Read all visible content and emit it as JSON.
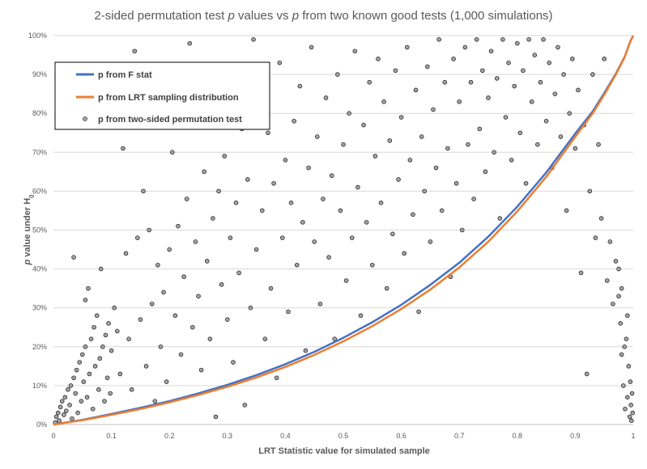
{
  "chart_data": {
    "type": "scatter",
    "title": {
      "part1": "2-sided permutation test ",
      "p1": "p",
      "part2": " values vs ",
      "p2": "p",
      "part3": " from two known good tests (1,000 simulations)"
    },
    "xlabel": "LRT Statistic value for simulated sample",
    "ylabel": {
      "p": "p",
      "rest": " value under H",
      "sub": "0"
    },
    "xlim": [
      0,
      1
    ],
    "ylim": [
      0,
      1
    ],
    "x_ticks": [
      "0",
      "0.1",
      "0.2",
      "0.3",
      "0.4",
      "0.5",
      "0.6",
      "0.7",
      "0.8",
      "0.9",
      "1"
    ],
    "y_ticks": [
      "0%",
      "10%",
      "20%",
      "30%",
      "40%",
      "50%",
      "60%",
      "70%",
      "80%",
      "90%",
      "100%"
    ],
    "grid": "horizontal",
    "legend_position": "top-left",
    "series": [
      {
        "name": "p from F stat",
        "kind": "line",
        "color": "#4472C4",
        "points": [
          [
            0,
            0
          ],
          [
            0.05,
            0.012
          ],
          [
            0.1,
            0.027
          ],
          [
            0.15,
            0.043
          ],
          [
            0.2,
            0.06
          ],
          [
            0.25,
            0.08
          ],
          [
            0.3,
            0.102
          ],
          [
            0.35,
            0.127
          ],
          [
            0.4,
            0.155
          ],
          [
            0.45,
            0.187
          ],
          [
            0.5,
            0.223
          ],
          [
            0.55,
            0.263
          ],
          [
            0.6,
            0.308
          ],
          [
            0.65,
            0.359
          ],
          [
            0.7,
            0.416
          ],
          [
            0.75,
            0.483
          ],
          [
            0.8,
            0.56
          ],
          [
            0.85,
            0.648
          ],
          [
            0.9,
            0.748
          ],
          [
            0.93,
            0.805
          ],
          [
            0.95,
            0.852
          ],
          [
            0.97,
            0.902
          ],
          [
            0.985,
            0.945
          ],
          [
            0.995,
            0.985
          ],
          [
            1,
            1
          ]
        ]
      },
      {
        "name": "p from LRT sampling distribution",
        "kind": "line",
        "color": "#ED7D31",
        "points": [
          [
            0,
            0
          ],
          [
            0.05,
            0.011
          ],
          [
            0.1,
            0.025
          ],
          [
            0.15,
            0.04
          ],
          [
            0.2,
            0.057
          ],
          [
            0.25,
            0.076
          ],
          [
            0.3,
            0.097
          ],
          [
            0.35,
            0.121
          ],
          [
            0.4,
            0.148
          ],
          [
            0.45,
            0.179
          ],
          [
            0.5,
            0.214
          ],
          [
            0.55,
            0.253
          ],
          [
            0.6,
            0.297
          ],
          [
            0.65,
            0.347
          ],
          [
            0.7,
            0.404
          ],
          [
            0.75,
            0.47
          ],
          [
            0.8,
            0.548
          ],
          [
            0.85,
            0.637
          ],
          [
            0.9,
            0.74
          ],
          [
            0.93,
            0.8
          ],
          [
            0.95,
            0.848
          ],
          [
            0.97,
            0.9
          ],
          [
            0.985,
            0.944
          ],
          [
            0.995,
            0.985
          ],
          [
            1,
            1
          ]
        ]
      },
      {
        "name": "p from two-sided permutation test",
        "kind": "scatter",
        "color": "#A5A5A5",
        "points": [
          [
            0.003,
            0.005
          ],
          [
            0.005,
            0.02
          ],
          [
            0.008,
            0.03
          ],
          [
            0.01,
            0.01
          ],
          [
            0.012,
            0.045
          ],
          [
            0.015,
            0.06
          ],
          [
            0.018,
            0.025
          ],
          [
            0.02,
            0.07
          ],
          [
            0.022,
            0.035
          ],
          [
            0.025,
            0.09
          ],
          [
            0.028,
            0.05
          ],
          [
            0.03,
            0.1
          ],
          [
            0.032,
            0.015
          ],
          [
            0.035,
            0.12
          ],
          [
            0.038,
            0.08
          ],
          [
            0.04,
            0.14
          ],
          [
            0.042,
            0.03
          ],
          [
            0.045,
            0.16
          ],
          [
            0.048,
            0.06
          ],
          [
            0.05,
            0.18
          ],
          [
            0.052,
            0.11
          ],
          [
            0.055,
            0.2
          ],
          [
            0.058,
            0.07
          ],
          [
            0.06,
            0.35
          ],
          [
            0.062,
            0.13
          ],
          [
            0.065,
            0.22
          ],
          [
            0.068,
            0.04
          ],
          [
            0.07,
            0.25
          ],
          [
            0.072,
            0.15
          ],
          [
            0.075,
            0.28
          ],
          [
            0.078,
            0.09
          ],
          [
            0.08,
            0.17
          ],
          [
            0.082,
            0.4
          ],
          [
            0.085,
            0.2
          ],
          [
            0.088,
            0.06
          ],
          [
            0.09,
            0.23
          ],
          [
            0.093,
            0.12
          ],
          [
            0.095,
            0.26
          ],
          [
            0.098,
            0.08
          ],
          [
            0.1,
            0.19
          ],
          [
            0.035,
            0.43
          ],
          [
            0.055,
            0.32
          ],
          [
            0.105,
            0.3
          ],
          [
            0.11,
            0.24
          ],
          [
            0.115,
            0.13
          ],
          [
            0.12,
            0.71
          ],
          [
            0.125,
            0.44
          ],
          [
            0.13,
            0.22
          ],
          [
            0.135,
            0.09
          ],
          [
            0.14,
            0.96
          ],
          [
            0.145,
            0.48
          ],
          [
            0.15,
            0.27
          ],
          [
            0.155,
            0.6
          ],
          [
            0.16,
            0.15
          ],
          [
            0.165,
            0.5
          ],
          [
            0.17,
            0.31
          ],
          [
            0.175,
            0.06
          ],
          [
            0.18,
            0.41
          ],
          [
            0.185,
            0.2
          ],
          [
            0.19,
            0.34
          ],
          [
            0.195,
            0.11
          ],
          [
            0.2,
            0.45
          ],
          [
            0.205,
            0.7
          ],
          [
            0.21,
            0.28
          ],
          [
            0.215,
            0.51
          ],
          [
            0.22,
            0.18
          ],
          [
            0.225,
            0.38
          ],
          [
            0.23,
            0.58
          ],
          [
            0.235,
            0.98
          ],
          [
            0.24,
            0.25
          ],
          [
            0.245,
            0.47
          ],
          [
            0.25,
            0.33
          ],
          [
            0.255,
            0.14
          ],
          [
            0.26,
            0.65
          ],
          [
            0.265,
            0.42
          ],
          [
            0.27,
            0.22
          ],
          [
            0.275,
            0.53
          ],
          [
            0.28,
            0.02
          ],
          [
            0.285,
            0.6
          ],
          [
            0.29,
            0.36
          ],
          [
            0.295,
            0.69
          ],
          [
            0.3,
            0.27
          ],
          [
            0.305,
            0.48
          ],
          [
            0.31,
            0.16
          ],
          [
            0.315,
            0.57
          ],
          [
            0.32,
            0.39
          ],
          [
            0.325,
            0.76
          ],
          [
            0.33,
            0.05
          ],
          [
            0.335,
            0.63
          ],
          [
            0.34,
            0.3
          ],
          [
            0.345,
            0.99
          ],
          [
            0.35,
            0.45
          ],
          [
            0.355,
            0.86
          ],
          [
            0.36,
            0.55
          ],
          [
            0.365,
            0.22
          ],
          [
            0.37,
            0.75
          ],
          [
            0.375,
            0.35
          ],
          [
            0.38,
            0.62
          ],
          [
            0.385,
            0.12
          ],
          [
            0.39,
            0.93
          ],
          [
            0.395,
            0.48
          ],
          [
            0.4,
            0.68
          ],
          [
            0.405,
            0.29
          ],
          [
            0.41,
            0.57
          ],
          [
            0.415,
            0.78
          ],
          [
            0.42,
            0.41
          ],
          [
            0.425,
            0.87
          ],
          [
            0.43,
            0.52
          ],
          [
            0.435,
            0.19
          ],
          [
            0.44,
            0.66
          ],
          [
            0.445,
            0.97
          ],
          [
            0.45,
            0.47
          ],
          [
            0.455,
            0.74
          ],
          [
            0.46,
            0.31
          ],
          [
            0.465,
            0.58
          ],
          [
            0.47,
            0.84
          ],
          [
            0.475,
            0.43
          ],
          [
            0.48,
            0.64
          ],
          [
            0.485,
            0.22
          ],
          [
            0.49,
            0.9
          ],
          [
            0.495,
            0.55
          ],
          [
            0.5,
            0.72
          ],
          [
            0.505,
            0.37
          ],
          [
            0.51,
            0.8
          ],
          [
            0.515,
            0.48
          ],
          [
            0.52,
            0.96
          ],
          [
            0.525,
            0.61
          ],
          [
            0.53,
            0.28
          ],
          [
            0.535,
            0.77
          ],
          [
            0.54,
            0.52
          ],
          [
            0.545,
            0.88
          ],
          [
            0.55,
            0.41
          ],
          [
            0.555,
            0.69
          ],
          [
            0.56,
            0.94
          ],
          [
            0.565,
            0.57
          ],
          [
            0.57,
            0.83
          ],
          [
            0.575,
            0.35
          ],
          [
            0.58,
            0.73
          ],
          [
            0.585,
            0.49
          ],
          [
            0.59,
            0.91
          ],
          [
            0.595,
            0.63
          ],
          [
            0.6,
            0.79
          ],
          [
            0.605,
            0.44
          ],
          [
            0.61,
            0.97
          ],
          [
            0.615,
            0.68
          ],
          [
            0.62,
            0.54
          ],
          [
            0.625,
            0.86
          ],
          [
            0.63,
            0.29
          ],
          [
            0.635,
            0.74
          ],
          [
            0.64,
            0.6
          ],
          [
            0.645,
            0.92
          ],
          [
            0.65,
            0.47
          ],
          [
            0.655,
            0.81
          ],
          [
            0.66,
            0.66
          ],
          [
            0.665,
            0.99
          ],
          [
            0.67,
            0.55
          ],
          [
            0.675,
            0.88
          ],
          [
            0.68,
            0.71
          ],
          [
            0.685,
            0.38
          ],
          [
            0.69,
            0.94
          ],
          [
            0.695,
            0.62
          ],
          [
            0.7,
            0.83
          ],
          [
            0.705,
            0.5
          ],
          [
            0.71,
            0.97
          ],
          [
            0.715,
            0.72
          ],
          [
            0.72,
            0.88
          ],
          [
            0.725,
            0.58
          ],
          [
            0.73,
            0.99
          ],
          [
            0.735,
            0.76
          ],
          [
            0.74,
            0.91
          ],
          [
            0.745,
            0.65
          ],
          [
            0.75,
            0.84
          ],
          [
            0.755,
            0.96
          ],
          [
            0.76,
            0.7
          ],
          [
            0.765,
            0.89
          ],
          [
            0.77,
            0.53
          ],
          [
            0.775,
            0.99
          ],
          [
            0.78,
            0.79
          ],
          [
            0.785,
            0.93
          ],
          [
            0.79,
            0.68
          ],
          [
            0.795,
            0.87
          ],
          [
            0.8,
            0.98
          ],
          [
            0.805,
            0.75
          ],
          [
            0.81,
            0.91
          ],
          [
            0.815,
            0.62
          ],
          [
            0.82,
            0.99
          ],
          [
            0.825,
            0.83
          ],
          [
            0.83,
            0.95
          ],
          [
            0.835,
            0.72
          ],
          [
            0.84,
            0.88
          ],
          [
            0.845,
            0.99
          ],
          [
            0.85,
            0.78
          ],
          [
            0.855,
            0.93
          ],
          [
            0.86,
            0.66
          ],
          [
            0.865,
            0.85
          ],
          [
            0.87,
            0.97
          ],
          [
            0.875,
            0.74
          ],
          [
            0.88,
            0.9
          ],
          [
            0.885,
            0.55
          ],
          [
            0.89,
            0.8
          ],
          [
            0.895,
            0.94
          ],
          [
            0.9,
            0.71
          ],
          [
            0.905,
            0.86
          ],
          [
            0.91,
            0.39
          ],
          [
            0.915,
            0.77
          ],
          [
            0.92,
            0.13
          ],
          [
            0.925,
            0.6
          ],
          [
            0.93,
            0.9
          ],
          [
            0.935,
            0.48
          ],
          [
            0.94,
            0.72
          ],
          [
            0.945,
            0.53
          ],
          [
            0.95,
            0.94
          ],
          [
            0.955,
            0.37
          ],
          [
            0.96,
            0.47
          ],
          [
            0.965,
            0.31
          ],
          [
            0.97,
            0.42
          ],
          [
            0.975,
            0.33
          ],
          [
            0.978,
            0.26
          ],
          [
            0.98,
            0.18
          ],
          [
            0.983,
            0.1
          ],
          [
            0.986,
            0.04
          ],
          [
            0.988,
            0.22
          ],
          [
            0.99,
            0.07
          ],
          [
            0.992,
            0.15
          ],
          [
            0.994,
            0.02
          ],
          [
            0.995,
            0.11
          ],
          [
            0.996,
            0.05
          ],
          [
            0.997,
            0.01
          ],
          [
            0.998,
            0.08
          ],
          [
            0.999,
            0.03
          ],
          [
            0.98,
            0.35
          ],
          [
            0.975,
            0.4
          ],
          [
            0.99,
            0.28
          ],
          [
            0.985,
            0.2
          ]
        ]
      }
    ]
  }
}
